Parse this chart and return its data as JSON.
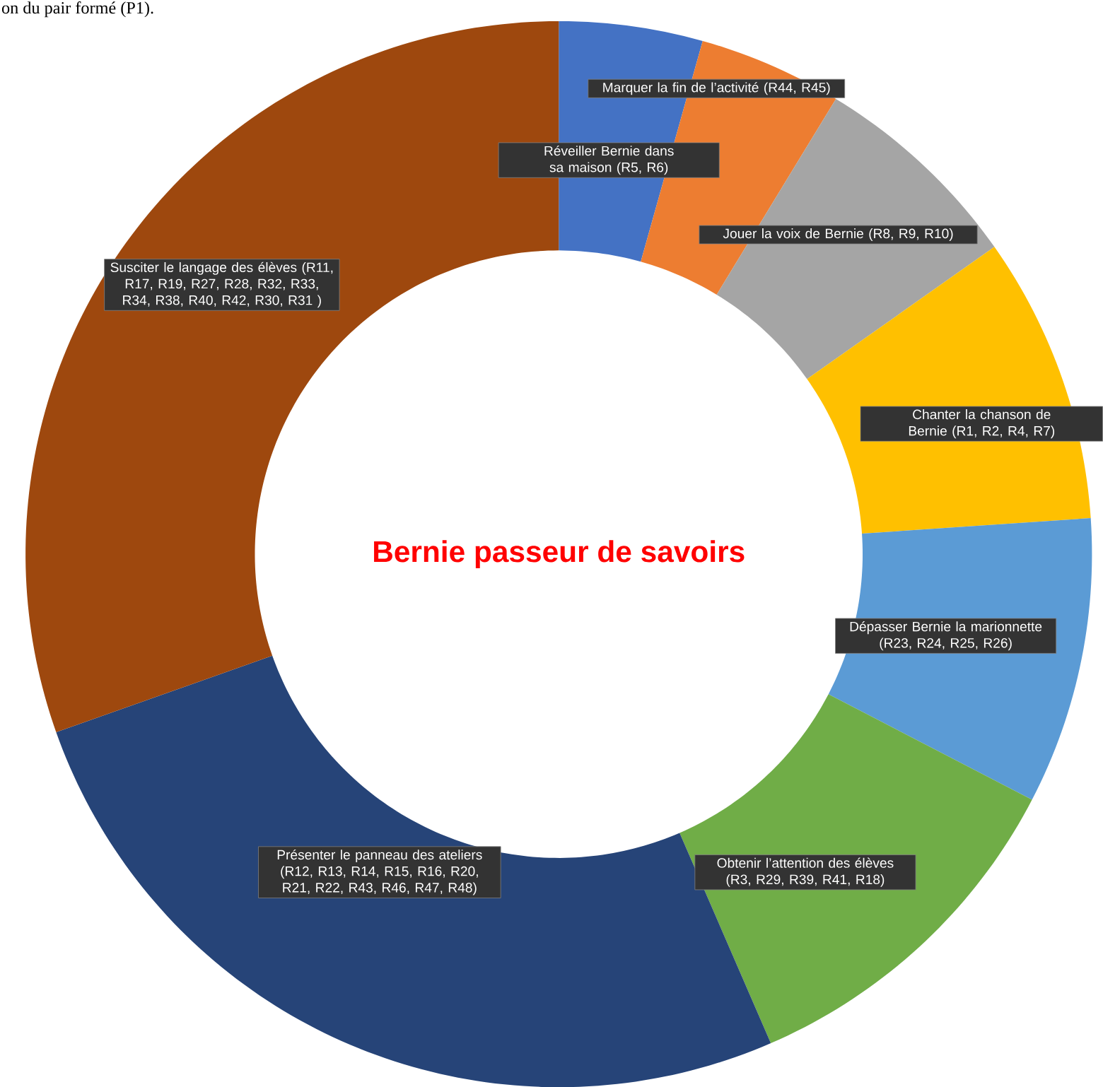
{
  "chart_data": {
    "type": "donut",
    "title": "Bernie passeur de savoirs",
    "annotations": [
      "on du pair formé (P1)."
    ],
    "categories": [
      "Réveiller Bernie dans sa maison (R5, R6)",
      "Marquer la fin de l’activité (R44, R45)",
      "Jouer la voix de Bernie (R8, R9, R10)",
      "Chanter la chanson de Bernie (R1, R2, R4, R7)",
      "Dépasser Bernie la marionnette (R23, R24, R25, R26)",
      "Obtenir l’attention des élèves (R3, R29, R39, R41, R18)",
      "Présenter le panneau des ateliers (R12, R13, R14, R15, R16, R20, R21, R22, R43, R46, R47, R48)",
      "Susciter le langage des élèves (R11, R17, R19, R27, R28, R32, R33, R34, R38, R40, R42, R30, R31 )"
    ],
    "values": [
      4.35,
      4.35,
      6.52,
      8.7,
      8.7,
      10.87,
      26.09,
      30.42
    ],
    "colors": [
      "#4472c4",
      "#ed7d31",
      "#a5a5a5",
      "#ffc000",
      "#5b9bd5",
      "#70ad47",
      "#264478",
      "#9e480e"
    ]
  }
}
